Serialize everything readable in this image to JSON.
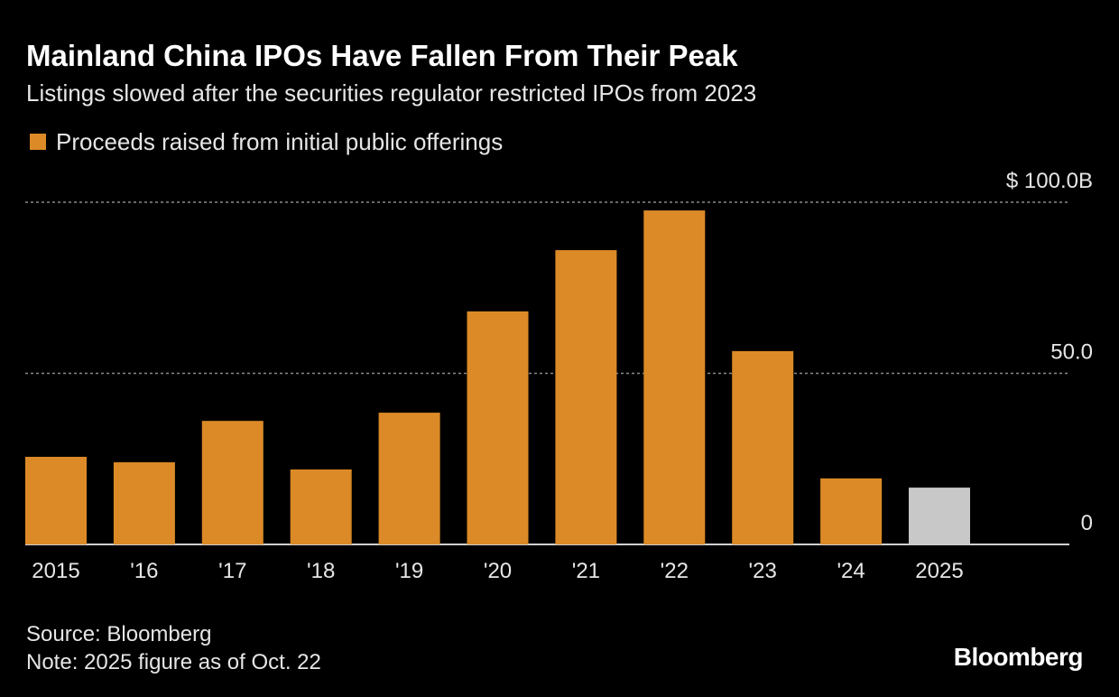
{
  "chart_data": {
    "type": "bar",
    "title": "Mainland China IPOs Have Fallen From Their Peak",
    "subtitle": "Listings slowed after the securities regulator restricted IPOs from 2023",
    "categories": [
      "2015",
      "'16",
      "'17",
      "'18",
      "'19",
      "'20",
      "'21",
      "'22",
      "'23",
      "'24",
      "2025"
    ],
    "series": [
      {
        "name": "Proceeds raised from initial public offerings",
        "color": "#db8a27",
        "values": [
          25.6,
          24.0,
          36.1,
          21.9,
          38.5,
          68.1,
          86.0,
          97.6,
          56.5,
          19.3,
          16.6
        ],
        "colors": [
          "#db8a27",
          "#db8a27",
          "#db8a27",
          "#db8a27",
          "#db8a27",
          "#db8a27",
          "#db8a27",
          "#db8a27",
          "#db8a27",
          "#db8a27",
          "#c8c8c8"
        ]
      }
    ],
    "ylim": [
      0,
      100
    ],
    "yticks": [
      {
        "value": 0,
        "label": "0"
      },
      {
        "value": 50,
        "label": "50.0"
      },
      {
        "value": 100,
        "label": "$ 100.0B"
      }
    ],
    "grid": true,
    "source": "Source: Bloomberg",
    "note": "Note: 2025 figure as of Oct. 22",
    "brand": "Bloomberg"
  }
}
